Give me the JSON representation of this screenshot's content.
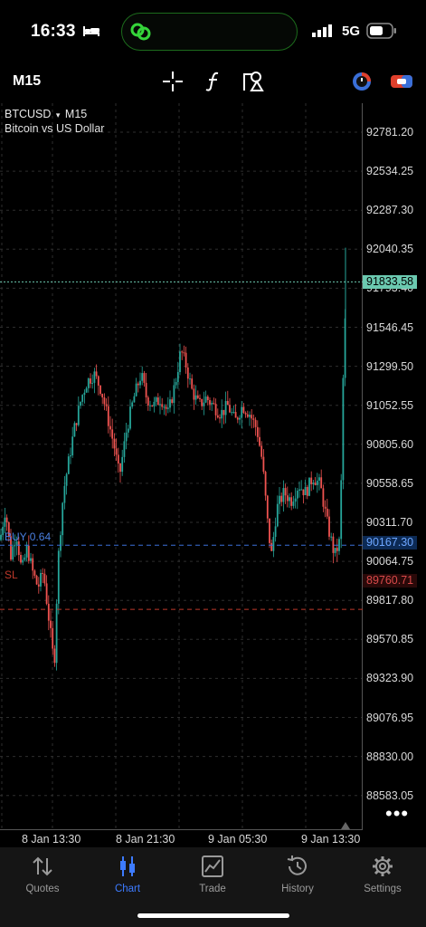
{
  "status_bar": {
    "time": "16:33",
    "network": "5G",
    "icons": [
      "bed-icon",
      "link-icon",
      "signal-icon",
      "battery-icon"
    ]
  },
  "toolbar": {
    "timeframe": "M15",
    "icons": [
      "crosshair-icon",
      "indicator-icon",
      "objects-icon",
      "timer-icon",
      "one-click-trade-icon"
    ]
  },
  "chart": {
    "symbol": "BTCUSD",
    "symbol_caret": "▾",
    "timeframe": "M15",
    "description": "Bitcoin vs US Dollar",
    "price_axis": [
      "92781.20",
      "92534.25",
      "92287.30",
      "92040.35",
      "91793.40",
      "91546.45",
      "91299.50",
      "91052.55",
      "90805.60",
      "90558.65",
      "90311.70",
      "90064.75",
      "89817.80",
      "89570.85",
      "89323.90",
      "89076.95",
      "88830.00",
      "88583.05"
    ],
    "time_axis": [
      "8 Jan 13:30",
      "8 Jan 21:30",
      "9 Jan 05:30",
      "9 Jan 13:30"
    ],
    "bid_price": "91833.58",
    "buy_line": {
      "label": "BUY 0.64",
      "price": "90167.30"
    },
    "sl_line": {
      "label": "SL",
      "price": "89760.71"
    },
    "colors": {
      "bull": "#26a69a",
      "bear": "#ef5350",
      "grid": "#2e2e2e",
      "bid_line": "#6bc9b0",
      "buy_line": "#3a6fd8",
      "sl_line": "#c0392b"
    }
  },
  "tabbar": {
    "tabs": [
      {
        "label": "Quotes",
        "icon": "quotes-arrows-icon",
        "active": false
      },
      {
        "label": "Chart",
        "icon": "chart-candles-icon",
        "active": true
      },
      {
        "label": "Trade",
        "icon": "trade-chart-icon",
        "active": false
      },
      {
        "label": "History",
        "icon": "history-clock-icon",
        "active": false
      },
      {
        "label": "Settings",
        "icon": "settings-gear-icon",
        "active": false
      }
    ]
  }
}
